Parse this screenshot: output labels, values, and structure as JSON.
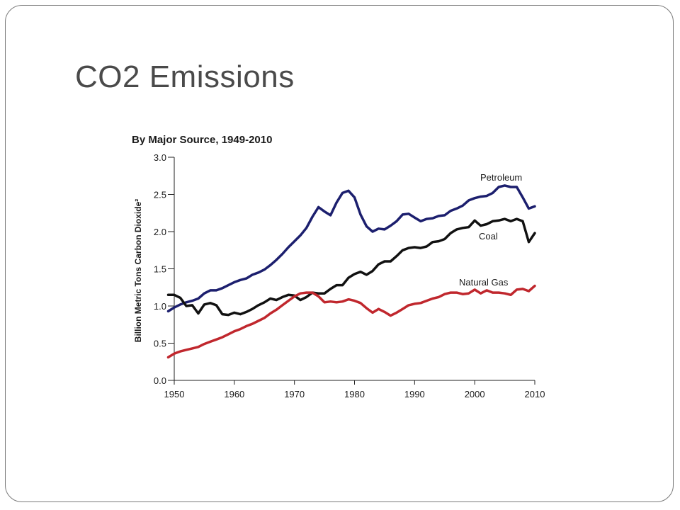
{
  "slide": {
    "title": "CO2 Emissions"
  },
  "chart_data": {
    "type": "line",
    "title": "By Major Source, 1949-2010",
    "xlabel": "",
    "ylabel": "Billion Metric Tons Carbon Dioxide²",
    "xlim": [
      1949,
      2010
    ],
    "ylim": [
      0,
      3.0
    ],
    "x_ticks": [
      1950,
      1960,
      1970,
      1980,
      1990,
      2000,
      2010
    ],
    "y_ticks": [
      "0.0",
      "0.5",
      "1.0",
      "1.5",
      "2.0",
      "2.5",
      "3.0"
    ],
    "grid": false,
    "legend": "inline labels",
    "series": [
      {
        "name": "Petroleum",
        "color": "#1c1f6e",
        "x": [
          1949,
          1950,
          1951,
          1952,
          1953,
          1954,
          1955,
          1956,
          1957,
          1958,
          1959,
          1960,
          1961,
          1962,
          1963,
          1964,
          1965,
          1966,
          1967,
          1968,
          1969,
          1970,
          1971,
          1972,
          1973,
          1974,
          1975,
          1976,
          1977,
          1978,
          1979,
          1980,
          1981,
          1982,
          1983,
          1984,
          1985,
          1986,
          1987,
          1988,
          1989,
          1990,
          1991,
          1992,
          1993,
          1994,
          1995,
          1996,
          1997,
          1998,
          1999,
          2000,
          2001,
          2002,
          2003,
          2004,
          2005,
          2006,
          2007,
          2008,
          2009,
          2010
        ],
        "values": [
          0.93,
          0.98,
          1.02,
          1.05,
          1.07,
          1.1,
          1.17,
          1.21,
          1.21,
          1.24,
          1.28,
          1.32,
          1.35,
          1.37,
          1.42,
          1.45,
          1.49,
          1.55,
          1.62,
          1.7,
          1.79,
          1.87,
          1.95,
          2.05,
          2.2,
          2.33,
          2.27,
          2.22,
          2.39,
          2.52,
          2.55,
          2.46,
          2.23,
          2.07,
          2.0,
          2.04,
          2.03,
          2.08,
          2.14,
          2.23,
          2.24,
          2.19,
          2.14,
          2.17,
          2.18,
          2.21,
          2.22,
          2.28,
          2.31,
          2.35,
          2.42,
          2.45,
          2.47,
          2.48,
          2.52,
          2.6,
          2.62,
          2.6,
          2.6,
          2.46,
          2.31,
          2.34
        ],
        "label_text": "Petroleum"
      },
      {
        "name": "Coal",
        "color": "#111111",
        "x": [
          1949,
          1950,
          1951,
          1952,
          1953,
          1954,
          1955,
          1956,
          1957,
          1958,
          1959,
          1960,
          1961,
          1962,
          1963,
          1964,
          1965,
          1966,
          1967,
          1968,
          1969,
          1970,
          1971,
          1972,
          1973,
          1974,
          1975,
          1976,
          1977,
          1978,
          1979,
          1980,
          1981,
          1982,
          1983,
          1984,
          1985,
          1986,
          1987,
          1988,
          1989,
          1990,
          1991,
          1992,
          1993,
          1994,
          1995,
          1996,
          1997,
          1998,
          1999,
          2000,
          2001,
          2002,
          2003,
          2004,
          2005,
          2006,
          2007,
          2008,
          2009,
          2010
        ],
        "values": [
          1.15,
          1.15,
          1.11,
          1.0,
          1.01,
          0.9,
          1.02,
          1.04,
          1.01,
          0.89,
          0.88,
          0.91,
          0.89,
          0.92,
          0.96,
          1.01,
          1.05,
          1.1,
          1.08,
          1.12,
          1.15,
          1.14,
          1.08,
          1.12,
          1.18,
          1.17,
          1.17,
          1.23,
          1.28,
          1.28,
          1.38,
          1.43,
          1.46,
          1.42,
          1.47,
          1.56,
          1.6,
          1.6,
          1.67,
          1.75,
          1.78,
          1.79,
          1.78,
          1.8,
          1.86,
          1.87,
          1.9,
          1.98,
          2.03,
          2.05,
          2.06,
          2.15,
          2.08,
          2.1,
          2.14,
          2.15,
          2.17,
          2.14,
          2.17,
          2.14,
          1.86,
          1.98
        ],
        "label_text": "Coal"
      },
      {
        "name": "Natural Gas",
        "color": "#c0272d",
        "x": [
          1949,
          1950,
          1951,
          1952,
          1953,
          1954,
          1955,
          1956,
          1957,
          1958,
          1959,
          1960,
          1961,
          1962,
          1963,
          1964,
          1965,
          1966,
          1967,
          1968,
          1969,
          1970,
          1971,
          1972,
          1973,
          1974,
          1975,
          1976,
          1977,
          1978,
          1979,
          1980,
          1981,
          1982,
          1983,
          1984,
          1985,
          1986,
          1987,
          1988,
          1989,
          1990,
          1991,
          1992,
          1993,
          1994,
          1995,
          1996,
          1997,
          1998,
          1999,
          2000,
          2001,
          2002,
          2003,
          2004,
          2005,
          2006,
          2007,
          2008,
          2009,
          2010
        ],
        "values": [
          0.31,
          0.36,
          0.39,
          0.41,
          0.43,
          0.45,
          0.49,
          0.52,
          0.55,
          0.58,
          0.62,
          0.66,
          0.69,
          0.73,
          0.76,
          0.8,
          0.84,
          0.9,
          0.95,
          1.01,
          1.07,
          1.13,
          1.17,
          1.18,
          1.18,
          1.13,
          1.05,
          1.06,
          1.05,
          1.06,
          1.09,
          1.07,
          1.04,
          0.97,
          0.91,
          0.96,
          0.92,
          0.87,
          0.91,
          0.96,
          1.01,
          1.03,
          1.04,
          1.07,
          1.1,
          1.12,
          1.16,
          1.18,
          1.18,
          1.16,
          1.17,
          1.22,
          1.17,
          1.21,
          1.18,
          1.18,
          1.17,
          1.15,
          1.22,
          1.23,
          1.2,
          1.27
        ],
        "label_text": "Natural Gas"
      }
    ]
  }
}
